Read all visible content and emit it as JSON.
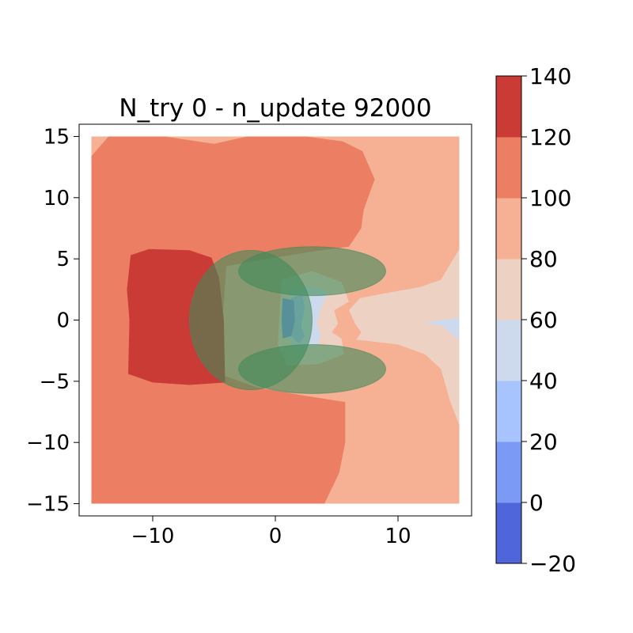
{
  "chart_data": {
    "type": "heatmap",
    "subtype": "filled-contour",
    "title": "N_try 0 - n_update 92000",
    "xlabel": "",
    "ylabel": "",
    "xlim": [
      -16,
      16
    ],
    "ylim": [
      -16,
      16
    ],
    "x_ticks": [
      -10,
      0,
      10
    ],
    "x_tick_labels": [
      "−10",
      "0",
      "10"
    ],
    "y_ticks": [
      15,
      10,
      5,
      0,
      -5,
      -10,
      -15
    ],
    "y_tick_labels": [
      "15",
      "10",
      "5",
      "0",
      "−5",
      "−10",
      "−15"
    ],
    "grid": false,
    "data_extent": {
      "x": [
        -15,
        15
      ],
      "y": [
        -15,
        15
      ]
    },
    "colorbar": {
      "levels": [
        -20,
        0,
        20,
        40,
        60,
        80,
        100,
        120,
        140
      ],
      "tick_labels": [
        "−20",
        "0",
        "20",
        "40",
        "60",
        "80",
        "100",
        "120",
        "140"
      ],
      "colors": [
        "#4f66db",
        "#7a9af6",
        "#a7c4fe",
        "#cdd9ec",
        "#edd1c2",
        "#f6b094",
        "#ec7f63",
        "#cb3b36"
      ],
      "colormap": "coolwarm"
    },
    "regions": [
      {
        "level_range": [
          80,
          100
        ],
        "description": "background right side",
        "polygon": [
          [
            -15,
            15
          ],
          [
            15,
            15
          ],
          [
            15,
            -15
          ],
          [
            -15,
            -15
          ]
        ]
      },
      {
        "level_range": [
          100,
          120
        ],
        "polygon": [
          [
            -15,
            13.4
          ],
          [
            -13.6,
            15
          ],
          [
            -9,
            15
          ],
          [
            -5,
            14.4
          ],
          [
            -2.3,
            15
          ],
          [
            2.5,
            15
          ],
          [
            5.5,
            14.6
          ],
          [
            7.1,
            13.8
          ],
          [
            8.1,
            11.5
          ],
          [
            7.2,
            9
          ],
          [
            7,
            7.5
          ],
          [
            6,
            6
          ],
          [
            3,
            5.6
          ],
          [
            0,
            5.1
          ],
          [
            -4,
            4.4
          ],
          [
            -4.3,
            0
          ],
          [
            -4.3,
            -4.5
          ],
          [
            -1.5,
            -5.5
          ],
          [
            2.5,
            -6.2
          ],
          [
            5.7,
            -6.7
          ],
          [
            5.7,
            -10
          ],
          [
            5.2,
            -12.5
          ],
          [
            4,
            -15
          ],
          [
            -15,
            -15
          ]
        ]
      },
      {
        "level_range": [
          120,
          140
        ],
        "polygon": [
          [
            -11.8,
            5.3
          ],
          [
            -10.3,
            5.8
          ],
          [
            -7,
            5.7
          ],
          [
            -5.2,
            5.1
          ],
          [
            -4.6,
            3.5
          ],
          [
            -4.2,
            0
          ],
          [
            -4.1,
            -5.1
          ],
          [
            -7,
            -5.3
          ],
          [
            -10,
            -5.1
          ],
          [
            -12,
            -4.4
          ],
          [
            -11.9,
            0
          ],
          [
            -12.1,
            2.5
          ]
        ]
      },
      {
        "level_range": [
          60,
          80
        ],
        "polygon": [
          [
            15,
            5.8
          ],
          [
            13.5,
            3.3
          ],
          [
            11.8,
            2.7
          ],
          [
            9,
            2.2
          ],
          [
            6.9,
            1.8
          ],
          [
            6,
            0.8
          ],
          [
            6.5,
            -0.3
          ],
          [
            7,
            -1
          ],
          [
            6.6,
            -1.6
          ],
          [
            10,
            -2
          ],
          [
            12.2,
            -2.8
          ],
          [
            13.5,
            -4
          ],
          [
            14.2,
            -6.5
          ],
          [
            15,
            -8.6
          ]
        ]
      },
      {
        "level_range": [
          40,
          60
        ],
        "polygon": [
          [
            15,
            0.2
          ],
          [
            12.2,
            -0.2
          ],
          [
            13.6,
            -0.5
          ],
          [
            15,
            -1.6
          ]
        ]
      },
      {
        "level_range": [
          60,
          80
        ],
        "description": "central band",
        "polygon": [
          [
            0.5,
            3.3
          ],
          [
            3,
            4
          ],
          [
            5.4,
            3.1
          ],
          [
            6,
            1.5
          ],
          [
            4.8,
            0.8
          ],
          [
            5.1,
            -0.3
          ],
          [
            4.6,
            -1
          ],
          [
            5.4,
            -1.5
          ],
          [
            5.6,
            -2.8
          ],
          [
            3.5,
            -3.6
          ],
          [
            1,
            -3.7
          ],
          [
            0.2,
            -2
          ]
        ]
      },
      {
        "level_range": [
          40,
          60
        ],
        "polygon": [
          [
            1.2,
            2.5
          ],
          [
            3,
            2.8
          ],
          [
            4.3,
            2.2
          ],
          [
            3.7,
            1
          ],
          [
            3.4,
            -0.3
          ],
          [
            3.7,
            -1.2
          ],
          [
            3.5,
            -2
          ],
          [
            1.8,
            -2.6
          ],
          [
            1,
            -1.5
          ]
        ]
      },
      {
        "level_range": [
          20,
          40
        ],
        "polygon": [
          [
            1.3,
            1.8
          ],
          [
            2.2,
            2.1
          ],
          [
            2.4,
            1
          ],
          [
            2.1,
            -0.5
          ],
          [
            2.4,
            -1.3
          ],
          [
            1.9,
            -1.9
          ],
          [
            1.2,
            -1.2
          ]
        ]
      },
      {
        "level_range": [
          0,
          20
        ],
        "polygon": [
          [
            0.6,
            1.8
          ],
          [
            1.5,
            1.6
          ],
          [
            1.6,
            0
          ],
          [
            1.3,
            -1.3
          ],
          [
            0.6,
            -1.5
          ],
          [
            0.5,
            0
          ]
        ]
      }
    ],
    "overlays": [
      {
        "shape": "ellipse",
        "center": [
          -2,
          0
        ],
        "radii": [
          5,
          5.7
        ],
        "color": "#3f8b5a",
        "opacity": 0.6
      },
      {
        "shape": "ellipse",
        "center": [
          3,
          4
        ],
        "radii": [
          6,
          2
        ],
        "color": "#3f8b5a",
        "opacity": 0.6
      },
      {
        "shape": "ellipse",
        "center": [
          3,
          -4
        ],
        "radii": [
          6,
          2
        ],
        "color": "#3f8b5a",
        "opacity": 0.6
      }
    ]
  }
}
